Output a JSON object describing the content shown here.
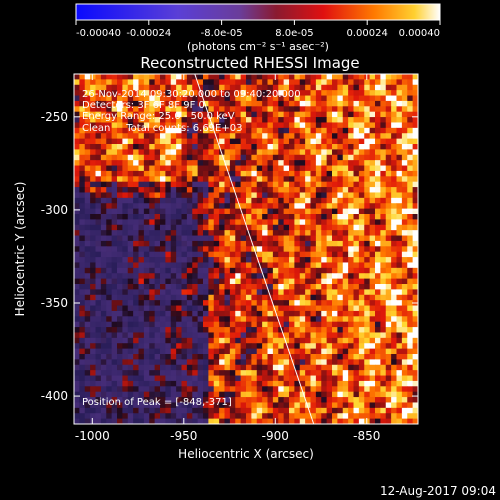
{
  "colorbar": {
    "ticks": [
      "-0.00040",
      "-0.00024",
      "-8.0e-05",
      "8.0e-05",
      "0.00024",
      "0.00040"
    ],
    "unit_label": "(photons cm⁻² s⁻¹ asec⁻²)",
    "range": [
      -0.0004,
      0.0004
    ]
  },
  "image": {
    "title": "Reconstructed RHESSI Image",
    "info_lines": [
      "26-Nov-2014 09:30:20.000 to 09:40:20.000",
      "Detectors: 3F 6F 8F 9F 0",
      "Energy Range: 25.0 - 50.0 keV",
      "Clean     Total counts: 6.69E+03"
    ],
    "peak_text": "Position of Peak = [-848,-371]",
    "xlabel": "Heliocentric X (arcsec)",
    "ylabel": "Heliocentric Y (arcsec)",
    "xlim": [
      -1010,
      -822
    ],
    "ylim": [
      -415,
      -227
    ],
    "x_ticks": [
      "-1000",
      "-950",
      "-900",
      "-850"
    ],
    "x_tick_values": [
      -1000,
      -950,
      -900,
      -850
    ],
    "y_ticks": [
      "-250",
      "-300",
      "-350",
      "-400"
    ],
    "y_tick_values": [
      -250,
      -300,
      -350,
      -400
    ],
    "limb_line": {
      "x1": -944,
      "y1": -227,
      "x2": -879,
      "y2": -415
    }
  },
  "footer": {
    "timestamp": "12-Aug-2017 09:04"
  }
}
